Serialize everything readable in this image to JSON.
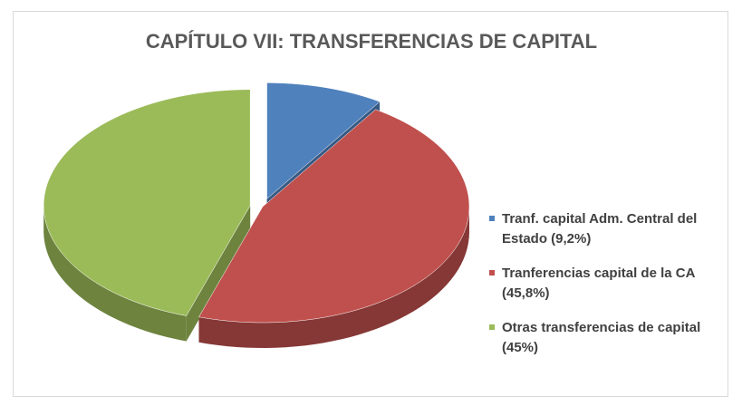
{
  "chart_data": {
    "type": "pie",
    "title": "CAPÍTULO VII: TRANSFERENCIAS DE CAPITAL",
    "categories": [
      "Tranf. capital Adm. Central del Estado (9,2%)",
      "Tranferencias capital de la CA (45,8%)",
      "Otras transferencias de capital (45%)"
    ],
    "values": [
      9.2,
      45.8,
      45
    ],
    "colors": [
      "#4f81bd",
      "#c0504d",
      "#9bbb59"
    ],
    "legend": "right"
  }
}
